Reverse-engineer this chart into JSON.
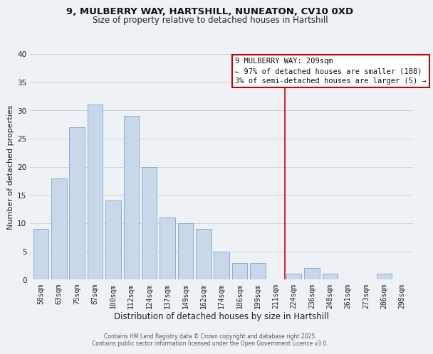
{
  "title_line1": "9, MULBERRY WAY, HARTSHILL, NUNEATON, CV10 0XD",
  "title_line2": "Size of property relative to detached houses in Hartshill",
  "xlabel": "Distribution of detached houses by size in Hartshill",
  "ylabel": "Number of detached properties",
  "bar_labels": [
    "50sqm",
    "63sqm",
    "75sqm",
    "87sqm",
    "100sqm",
    "112sqm",
    "124sqm",
    "137sqm",
    "149sqm",
    "162sqm",
    "174sqm",
    "186sqm",
    "199sqm",
    "211sqm",
    "224sqm",
    "236sqm",
    "248sqm",
    "261sqm",
    "273sqm",
    "286sqm",
    "298sqm"
  ],
  "bar_values": [
    9,
    18,
    27,
    31,
    14,
    29,
    20,
    11,
    10,
    9,
    5,
    3,
    3,
    0,
    1,
    2,
    1,
    0,
    0,
    1,
    0
  ],
  "bar_color": "#c8d8ea",
  "bar_edge_color": "#8ab0cc",
  "ylim": [
    0,
    40
  ],
  "yticks": [
    0,
    5,
    10,
    15,
    20,
    25,
    30,
    35,
    40
  ],
  "vline_x": 13.5,
  "vline_color": "#cc0000",
  "annotation_title": "9 MULBERRY WAY: 209sqm",
  "annotation_line1": "← 97% of detached houses are smaller (188)",
  "annotation_line2": "3% of semi-detached houses are larger (5) →",
  "footer_line1": "Contains HM Land Registry data © Crown copyright and database right 2025.",
  "footer_line2": "Contains public sector information licensed under the Open Government Licence v3.0.",
  "bg_color": "#eef2f7",
  "plot_bg_color": "#eef2f7",
  "title1_fontsize": 9.5,
  "title2_fontsize": 8.5,
  "ylabel_fontsize": 8,
  "xlabel_fontsize": 8.5,
  "tick_fontsize": 7,
  "annotation_fontsize": 7.5,
  "footer_fontsize": 5.5
}
